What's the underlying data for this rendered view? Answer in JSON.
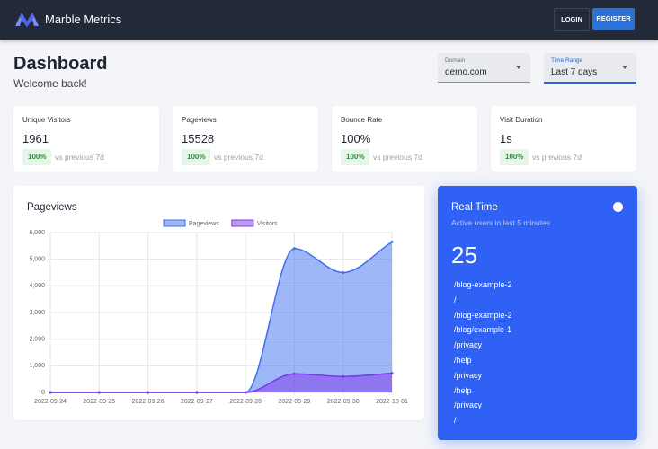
{
  "header": {
    "brand": "Marble Metrics",
    "login": "LOGIN",
    "register": "REGISTER"
  },
  "dashboard": {
    "title": "Dashboard",
    "subtitle": "Welcome back!"
  },
  "filters": [
    {
      "label": "Domain",
      "value": "demo.com"
    },
    {
      "label": "Time Range",
      "value": "Last 7 days"
    }
  ],
  "stats": [
    {
      "name": "Unique Visitors",
      "value": "1961",
      "change": "100%",
      "note": "vs previous 7d"
    },
    {
      "name": "Pageviews",
      "value": "15528",
      "change": "100%",
      "note": "vs previous 7d"
    },
    {
      "name": "Bounce Rate",
      "value": "100%",
      "change": "100%",
      "note": "vs previous 7d"
    },
    {
      "name": "Visit Duration",
      "value": "1s",
      "change": "100%",
      "note": "vs previous 7d"
    }
  ],
  "chart_data": {
    "type": "area",
    "title": "Pageviews",
    "categories": [
      "2022-09-24",
      "2022-09-25",
      "2022-09-26",
      "2022-09-27",
      "2022-09-28",
      "2022-09-29",
      "2022-09-30",
      "2022-10-01"
    ],
    "series": [
      {
        "name": "Pageviews",
        "color": "#3e6ff0",
        "values": [
          0,
          0,
          0,
          0,
          0,
          5400,
          4500,
          5650
        ]
      },
      {
        "name": "Visitors",
        "color": "#7b35e8",
        "values": [
          0,
          0,
          0,
          0,
          0,
          700,
          600,
          720
        ]
      }
    ],
    "ylim": [
      0,
      6000
    ],
    "yticks": [
      0,
      {
        "value": 1000,
        "label": "1,000"
      },
      {
        "value": 2000,
        "label": "2,000"
      },
      {
        "value": 3000,
        "label": "3,000"
      },
      {
        "value": 4000,
        "label": "4,000"
      },
      {
        "value": 5000,
        "label": "5,000"
      },
      {
        "value": 6000,
        "label": "6,000"
      }
    ],
    "grid": true
  },
  "realtime": {
    "title": "Real Time",
    "subtitle": "Active users in last 5 minutes",
    "count": "25",
    "pages": [
      "/blog-example-2",
      "/",
      "/blog-example-2",
      "/blog/example-1",
      "/privacy",
      "/help",
      "/privacy",
      "/help",
      "/privacy",
      "/"
    ]
  }
}
